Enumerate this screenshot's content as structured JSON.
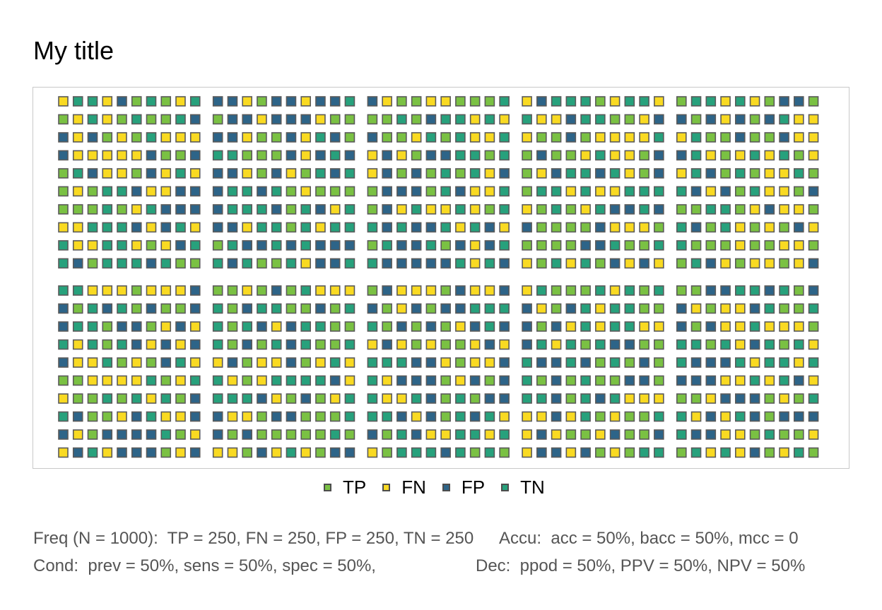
{
  "chart_data": {
    "type": "icon_array",
    "title": "My title",
    "n": 1000,
    "layout": {
      "blocks_x": 5,
      "blocks_y": 2,
      "block_cols": 10,
      "block_rows": 10
    },
    "legend_position": "bottom",
    "categories": [
      {
        "key": "TP",
        "label": "TP",
        "count": 250,
        "color": "#7AC143"
      },
      {
        "key": "FN",
        "label": "FN",
        "count": 250,
        "color": "#F9DA22"
      },
      {
        "key": "FP",
        "label": "FP",
        "count": 250,
        "color": "#2D6488"
      },
      {
        "key": "TN",
        "label": "TN",
        "count": 250,
        "color": "#27A17C"
      }
    ],
    "border_color": "#5a5a5a"
  },
  "summary": {
    "freq": "Freq (N = 1000):  TP = 250, FN = 250, FP = 250, TN = 250",
    "accu": "Accu:  acc = 50%, bacc = 50%, mcc = 0",
    "cond": "Cond:  prev = 50%, sens = 50%, spec = 50%,",
    "dec": "Dec:  ppod = 50%, PPV = 50%, NPV = 50%"
  }
}
